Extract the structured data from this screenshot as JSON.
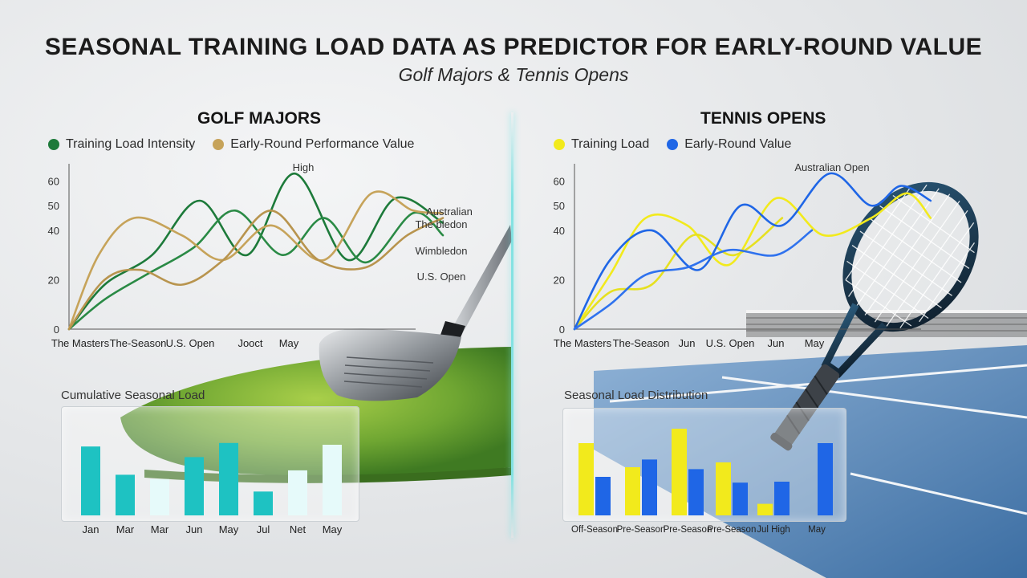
{
  "title": "SEASONAL TRAINING LOAD DATA AS PREDICTOR FOR EARLY-ROUND VALUE",
  "subtitle": "Golf Majors & Tennis Opens",
  "colors": {
    "golf_training": "#1d7a3a",
    "golf_value": "#c6a35a",
    "tennis_training": "#f2ea1c",
    "tennis_value": "#1f66e6",
    "teal_bar": "#1ec2c2",
    "pale_bar": "#e6fafa"
  },
  "golf": {
    "panel_title": "GOLF MAJORS",
    "legend": [
      "Training Load Intensity",
      "Early-Round Performance Value"
    ],
    "annotations": [
      "High",
      "Australian",
      "The bledon",
      "Wimbledon",
      "U.S. Open"
    ],
    "bar_title": "Cumulative Seasonal Load"
  },
  "tennis": {
    "panel_title": "TENNIS OPENS",
    "legend": [
      "Training Load",
      "Early-Round Value"
    ],
    "annotations": [
      "Australian Open"
    ],
    "bar_title": "Seasonal Load Distribution"
  },
  "chart_data": [
    {
      "type": "line",
      "panel": "golf",
      "x": [
        "The Masters",
        "The-Season",
        "U.S. Open",
        "Jooct",
        "May"
      ],
      "y_ticks": [
        0,
        20,
        40,
        50,
        60
      ],
      "ylim": [
        0,
        65
      ],
      "series": [
        {
          "name": "Training Load Intensity",
          "color": "#1d7a3a",
          "points": [
            [
              0,
              0
            ],
            [
              0.6,
              18
            ],
            [
              1.4,
              30
            ],
            [
              2.2,
              52
            ],
            [
              3,
              30
            ],
            [
              3.8,
              63
            ],
            [
              4.7,
              28
            ],
            [
              5.5,
              53
            ],
            [
              6.3,
              43
            ]
          ]
        },
        {
          "name": "Training Load Intensity",
          "color": "#2a8a45",
          "points": [
            [
              0,
              0
            ],
            [
              0.6,
              12
            ],
            [
              1.3,
              22
            ],
            [
              2.1,
              33
            ],
            [
              2.8,
              48
            ],
            [
              3.6,
              30
            ],
            [
              4.3,
              45
            ],
            [
              5.0,
              27
            ],
            [
              5.8,
              47
            ],
            [
              6.3,
              38
            ]
          ]
        },
        {
          "name": "Early-Round Performance Value",
          "color": "#c6a35a",
          "points": [
            [
              0,
              0
            ],
            [
              0.5,
              30
            ],
            [
              1.1,
              45
            ],
            [
              1.9,
              38
            ],
            [
              2.6,
              28
            ],
            [
              3.4,
              42
            ],
            [
              4.3,
              28
            ],
            [
              5.1,
              55
            ],
            [
              5.8,
              48
            ],
            [
              6.3,
              47
            ]
          ]
        },
        {
          "name": "Early-Round Performance Value",
          "color": "#b8944e",
          "points": [
            [
              0,
              0
            ],
            [
              0.6,
              20
            ],
            [
              1.2,
              24
            ],
            [
              1.9,
              18
            ],
            [
              2.6,
              28
            ],
            [
              3.4,
              48
            ],
            [
              4.2,
              28
            ],
            [
              5.0,
              25
            ],
            [
              5.7,
              38
            ],
            [
              6.3,
              45
            ]
          ]
        }
      ]
    },
    {
      "type": "line",
      "panel": "tennis",
      "x": [
        "The Masters",
        "The-Season",
        "Jun",
        "U.S. Open",
        "Jun",
        "May"
      ],
      "y_ticks": [
        0,
        20,
        40,
        50,
        60
      ],
      "ylim": [
        0,
        65
      ],
      "series": [
        {
          "name": "Training Load",
          "color": "#f2ea1c",
          "points": [
            [
              0,
              0
            ],
            [
              0.6,
              22
            ],
            [
              1.2,
              45
            ],
            [
              1.9,
              42
            ],
            [
              2.6,
              26
            ],
            [
              3.4,
              53
            ],
            [
              4.2,
              38
            ],
            [
              5.0,
              45
            ],
            [
              5.6,
              55
            ],
            [
              6.0,
              45
            ]
          ]
        },
        {
          "name": "Training Load",
          "color": "#e6e020",
          "points": [
            [
              0,
              0
            ],
            [
              0.6,
              15
            ],
            [
              1.3,
              18
            ],
            [
              2.0,
              38
            ],
            [
              2.7,
              30
            ],
            [
              3.5,
              45
            ]
          ]
        },
        {
          "name": "Early-Round Value",
          "color": "#1f66e6",
          "points": [
            [
              0,
              0
            ],
            [
              0.6,
              28
            ],
            [
              1.3,
              40
            ],
            [
              2.1,
              24
            ],
            [
              2.8,
              50
            ],
            [
              3.5,
              42
            ],
            [
              4.3,
              63
            ],
            [
              5.0,
              50
            ],
            [
              5.5,
              58
            ],
            [
              6.0,
              52
            ]
          ]
        },
        {
          "name": "Early-Round Value",
          "color": "#2f72ee",
          "points": [
            [
              0,
              0
            ],
            [
              0.6,
              10
            ],
            [
              1.2,
              22
            ],
            [
              1.9,
              25
            ],
            [
              2.6,
              32
            ],
            [
              3.4,
              30
            ],
            [
              4.0,
              40
            ]
          ]
        }
      ]
    },
    {
      "type": "bar",
      "panel": "golf",
      "categories": [
        "Jan",
        "Mar",
        "Mar",
        "Jun",
        "May",
        "Jul",
        "Net",
        "May"
      ],
      "values": [
        78,
        46,
        41,
        66,
        82,
        27,
        51,
        80
      ],
      "bar_colors": [
        "teal",
        "teal",
        "pale",
        "teal",
        "teal",
        "teal",
        "pale",
        "pale"
      ],
      "ylim": [
        0,
        100
      ]
    },
    {
      "type": "bar",
      "panel": "tennis",
      "categories": [
        "Off-Season",
        "Pre-Season",
        "Pre-Season",
        "Pre-Season",
        "Jul High",
        "May"
      ],
      "series": [
        {
          "name": "",
          "color": "#f2ea1c",
          "values": [
            75,
            50,
            90,
            55,
            12,
            0
          ]
        },
        {
          "name": "",
          "color": "#1f66e6",
          "values": [
            40,
            58,
            48,
            34,
            35,
            75
          ]
        }
      ],
      "ylim": [
        0,
        100
      ]
    }
  ]
}
